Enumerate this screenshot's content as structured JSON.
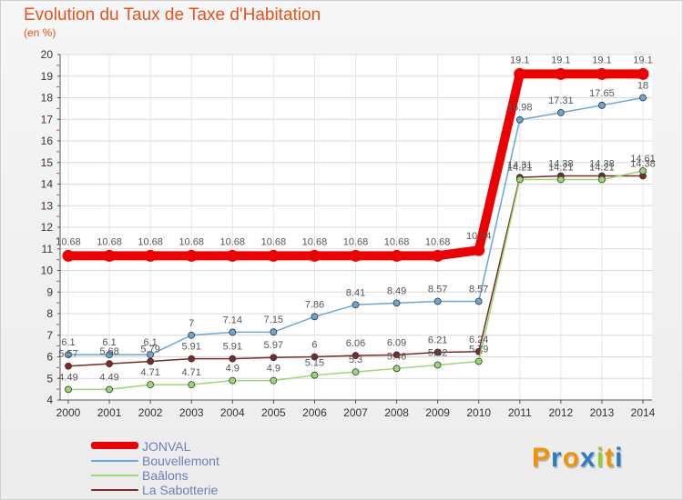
{
  "chart_data": {
    "type": "line",
    "title": "Evolution du Taux de Taxe d'Habitation",
    "ylabel": "(en %)",
    "xlabel": "",
    "ylim": [
      4,
      20
    ],
    "yticks": [
      "4",
      "5",
      "6",
      "7",
      "8",
      "9",
      "10",
      "11",
      "12",
      "13",
      "14",
      "15",
      "16",
      "17",
      "18",
      "19",
      "20"
    ],
    "x": [
      "2000",
      "2001",
      "2002",
      "2003",
      "2004",
      "2005",
      "2006",
      "2007",
      "2008",
      "2009",
      "2010",
      "2011",
      "2012",
      "2013",
      "2014"
    ],
    "series": [
      {
        "name": "JONVAL",
        "color": "#ee0000",
        "values": [
          10.68,
          10.68,
          10.68,
          10.68,
          10.68,
          10.68,
          10.68,
          10.68,
          10.68,
          10.68,
          10.94,
          19.1,
          19.1,
          19.1,
          19.1
        ],
        "labels": [
          "10.68",
          "10.68",
          "10.68",
          "10.68",
          "10.68",
          "10.68",
          "10.68",
          "10.68",
          "10.68",
          "10.68",
          "10.94",
          "19.1",
          "19.1",
          "19.1",
          "19.1"
        ]
      },
      {
        "name": "Bouvellemont",
        "color": "#6aa6d6",
        "values": [
          6.1,
          6.1,
          6.1,
          7,
          7.14,
          7.15,
          7.86,
          8.41,
          8.49,
          8.57,
          8.57,
          16.98,
          17.31,
          17.65,
          18
        ],
        "labels": [
          "6.1",
          "6.1",
          "6.1",
          "7",
          "7.14",
          "7.15",
          "7.86",
          "8.41",
          "8.49",
          "8.57",
          "8.57",
          "16.98",
          "17.31",
          "17.65",
          "18"
        ]
      },
      {
        "name": "Baâlons",
        "color": "#9ad870",
        "values": [
          4.49,
          4.49,
          4.71,
          4.71,
          4.9,
          4.9,
          5.15,
          5.3,
          5.46,
          5.62,
          5.79,
          14.21,
          14.21,
          14.21,
          14.61
        ],
        "labels": [
          "4.49",
          "4.49",
          "4.71",
          "4.71",
          "4.9",
          "4.9",
          "5.15",
          "5.3",
          "5.46",
          "5.62",
          "5.79",
          "14.21",
          "14.21",
          "14.21",
          "14.61"
        ]
      },
      {
        "name": "La Sabotterie",
        "color": "#7a2a2a",
        "values": [
          5.57,
          5.68,
          5.79,
          5.91,
          5.91,
          5.97,
          6,
          6.06,
          6.09,
          6.21,
          6.24,
          14.31,
          14.38,
          14.38,
          14.38
        ],
        "labels": [
          "5.57",
          "5.68",
          "5.79",
          "5.91",
          "5.91",
          "5.97",
          "6",
          "6.06",
          "6.09",
          "6.21",
          "6.24",
          "14.31",
          "14.38",
          "14.38",
          "14.38"
        ]
      }
    ]
  },
  "legend": {
    "items": [
      {
        "label": "JONVAL",
        "color": "#ee0000"
      },
      {
        "label": "Bouvellemont",
        "color": "#6aa6d6"
      },
      {
        "label": "Baâlons",
        "color": "#9ad870"
      },
      {
        "label": "La Sabotterie",
        "color": "#7a2a2a"
      }
    ]
  },
  "logo": {
    "letters": [
      "P",
      "r",
      "o",
      "x",
      "i",
      "t",
      "i"
    ],
    "colors": [
      "#f29400",
      "#2a7cc7",
      "#f29400",
      "#2a7cc7",
      "#9bc93a",
      "#f29400",
      "#2a7cc7"
    ]
  }
}
